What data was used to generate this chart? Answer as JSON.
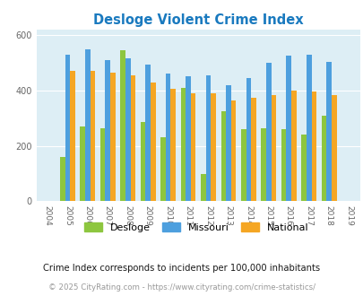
{
  "title": "Desloge Violent Crime Index",
  "years": [
    2004,
    2005,
    2006,
    2007,
    2008,
    2009,
    2010,
    2011,
    2012,
    2013,
    2014,
    2015,
    2016,
    2017,
    2018,
    2019
  ],
  "desloge": [
    0,
    160,
    270,
    265,
    545,
    285,
    230,
    410,
    100,
    325,
    260,
    265,
    260,
    240,
    310,
    0
  ],
  "missouri": [
    0,
    530,
    550,
    510,
    515,
    495,
    460,
    450,
    455,
    420,
    445,
    500,
    525,
    530,
    505,
    0
  ],
  "national": [
    0,
    470,
    470,
    465,
    455,
    430,
    405,
    390,
    390,
    365,
    375,
    385,
    400,
    398,
    385,
    0
  ],
  "ylim": [
    0,
    620
  ],
  "yticks": [
    0,
    200,
    400,
    600
  ],
  "desloge_color": "#8dc63f",
  "missouri_color": "#4d9fde",
  "national_color": "#f5a623",
  "bg_color": "#ddeef5",
  "title_color": "#1a7abf",
  "footnote1": "Crime Index corresponds to incidents per 100,000 inhabitants",
  "footnote2": "© 2025 CityRating.com - https://www.cityrating.com/crime-statistics/",
  "footnote1_color": "#1a1a1a",
  "footnote2_color": "#999999",
  "bar_width": 0.25
}
